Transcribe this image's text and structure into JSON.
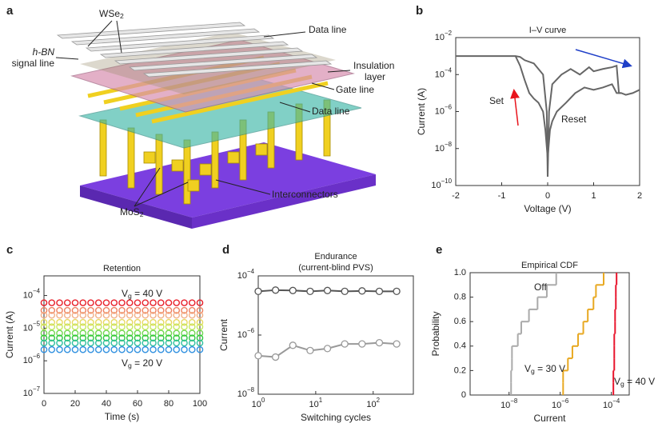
{
  "diagram": {
    "panel": "a",
    "labels": [
      "WSe2",
      "h-BN",
      "signal line",
      "Data line",
      "Insulation",
      "layer",
      "Gate line",
      "Data line",
      "Interconnectors",
      "MoS2"
    ]
  },
  "chart_data": [
    {
      "panel": "b",
      "type": "line",
      "title": "I–V curve",
      "xlabel": "Voltage (V)",
      "ylabel": "Current (A)",
      "xlim": [
        -2,
        2
      ],
      "xticks": [
        -2,
        -1,
        0,
        1,
        2
      ],
      "ylim": [
        1e-10,
        0.01
      ],
      "ylog": true,
      "yticks": [
        {
          "value": 1e-10,
          "label": "10−10"
        },
        {
          "value": 1e-08,
          "label": "10−8"
        },
        {
          "value": 1e-06,
          "label": "10−6"
        },
        {
          "value": 0.0001,
          "label": "10−4"
        },
        {
          "value": 0.01,
          "label": "10−2"
        }
      ],
      "series": [
        {
          "color": "#666666",
          "x": [
            -2,
            -1.5,
            -1,
            -0.7,
            -0.6,
            -0.5,
            -0.3,
            -0.1,
            -0.02,
            0,
            0.03,
            0.1,
            0.3,
            0.5,
            0.7,
            0.9,
            1.0,
            1.2,
            1.4,
            1.5,
            1.55,
            1.6,
            1.7,
            1.85,
            2
          ],
          "values": [
            0.001,
            0.001,
            0.001,
            0.001,
            0.0009,
            0.0006,
            0.0004,
            0.0001,
            1e-06,
            3e-10,
            1e-06,
            3e-05,
            0.0001,
            0.0002,
            0.0001,
            0.00025,
            0.00015,
            0.0002,
            0.00025,
            0.0003,
            1e-05,
            1e-05,
            8e-06,
            1e-05,
            1.5e-05
          ]
        },
        {
          "color": "#666666",
          "x": [
            -0.7,
            -0.6,
            -0.5,
            -0.4,
            -0.3,
            -0.2,
            -0.1,
            -0.05,
            0,
            0.05,
            0.1,
            0.2,
            0.4,
            0.6,
            0.8,
            1.0,
            1.2,
            1.4,
            1.5,
            1.6
          ],
          "values": [
            0.001,
            0.0003,
            5e-05,
            1e-05,
            5e-06,
            3e-06,
            1e-06,
            1e-07,
            3e-09,
            1e-07,
            3e-07,
            1e-06,
            3e-06,
            1e-05,
            2e-05,
            1.5e-05,
            2e-05,
            3e-05,
            1e-05,
            1e-05
          ]
        }
      ],
      "annotations": [
        {
          "text": "Set",
          "color": "#e8141c"
        },
        {
          "text": "Reset",
          "color": "#1f3fc8"
        }
      ]
    },
    {
      "panel": "c",
      "type": "scatter",
      "title": "Retention",
      "xlabel": "Time (s)",
      "ylabel": "Current (A)",
      "xlim": [
        0,
        100
      ],
      "xticks": [
        0,
        20,
        40,
        60,
        80,
        100
      ],
      "ylim": [
        1e-07,
        0.0004
      ],
      "ylog": true,
      "yticks": [
        {
          "value": 1e-07,
          "label": "10−7"
        },
        {
          "value": 1e-06,
          "label": "10−6"
        },
        {
          "value": 1e-05,
          "label": "10−5"
        },
        {
          "value": 0.0001,
          "label": "10−4"
        }
      ],
      "x": [
        0,
        5,
        10,
        15,
        20,
        25,
        30,
        35,
        40,
        45,
        50,
        55,
        60,
        65,
        70,
        75,
        80,
        85,
        90,
        95,
        100
      ],
      "series": [
        {
          "color": "#e8202a",
          "values": [
            6e-05,
            6e-05,
            6e-05,
            6e-05,
            6e-05,
            6e-05,
            6e-05,
            6e-05,
            6e-05,
            6e-05,
            6e-05,
            6e-05,
            6e-05,
            6e-05,
            6e-05,
            6e-05,
            6e-05,
            6e-05,
            6e-05,
            6e-05,
            6e-05
          ]
        },
        {
          "color": "#ee8060",
          "values": [
            3.5e-05,
            3.5e-05,
            3.5e-05,
            3.5e-05,
            3.5e-05,
            3.5e-05,
            3.5e-05,
            3.5e-05,
            3.5e-05,
            3.5e-05,
            3.5e-05,
            3.5e-05,
            3.5e-05,
            3.5e-05,
            3.5e-05,
            3.5e-05,
            3.5e-05,
            3.5e-05,
            3.5e-05,
            3.5e-05,
            3.5e-05
          ]
        },
        {
          "color": "#f2b088",
          "values": [
            2.5e-05,
            2.5e-05,
            2.5e-05,
            2.5e-05,
            2.5e-05,
            2.5e-05,
            2.5e-05,
            2.5e-05,
            2.5e-05,
            2.5e-05,
            2.5e-05,
            2.5e-05,
            2.5e-05,
            2.5e-05,
            2.5e-05,
            2.5e-05,
            2.5e-05,
            2.5e-05,
            2.5e-05,
            2.5e-05,
            2.5e-05
          ]
        },
        {
          "color": "#e8d860",
          "values": [
            1.5e-05,
            1.5e-05,
            1.5e-05,
            1.5e-05,
            1.5e-05,
            1.5e-05,
            1.5e-05,
            1.5e-05,
            1.5e-05,
            1.5e-05,
            1.5e-05,
            1.5e-05,
            1.5e-05,
            1.5e-05,
            1.5e-05,
            1.5e-05,
            1.5e-05,
            1.5e-05,
            1.5e-05,
            1.5e-05,
            1.5e-05
          ]
        },
        {
          "color": "#c8e860",
          "values": [
            1.1e-05,
            1.1e-05,
            1.1e-05,
            1.1e-05,
            1.1e-05,
            1.1e-05,
            1.1e-05,
            1.1e-05,
            1.1e-05,
            1.1e-05,
            1.1e-05,
            1.1e-05,
            1.1e-05,
            1.1e-05,
            1.1e-05,
            1.1e-05,
            1.1e-05,
            1.1e-05,
            1.1e-05,
            1.1e-05,
            1.1e-05
          ]
        },
        {
          "color": "#70d850",
          "values": [
            7e-06,
            7e-06,
            7e-06,
            7e-06,
            7e-06,
            7e-06,
            7e-06,
            7e-06,
            7e-06,
            7e-06,
            7e-06,
            7e-06,
            7e-06,
            7e-06,
            7e-06,
            7e-06,
            7e-06,
            7e-06,
            7e-06,
            7e-06,
            7e-06
          ]
        },
        {
          "color": "#30c840",
          "values": [
            5e-06,
            5e-06,
            5e-06,
            5e-06,
            5e-06,
            5e-06,
            5e-06,
            5e-06,
            5e-06,
            5e-06,
            5e-06,
            5e-06,
            5e-06,
            5e-06,
            5e-06,
            5e-06,
            5e-06,
            5e-06,
            5e-06,
            5e-06,
            5e-06
          ]
        },
        {
          "color": "#30c0a0",
          "values": [
            3.5e-06,
            3.5e-06,
            3.5e-06,
            3.5e-06,
            3.5e-06,
            3.5e-06,
            3.5e-06,
            3.5e-06,
            3.5e-06,
            3.5e-06,
            3.5e-06,
            3.5e-06,
            3.5e-06,
            3.5e-06,
            3.5e-06,
            3.5e-06,
            3.5e-06,
            3.5e-06,
            3.5e-06,
            3.5e-06,
            3.5e-06
          ]
        },
        {
          "color": "#3090e0",
          "values": [
            2.2e-06,
            2.2e-06,
            2.2e-06,
            2.2e-06,
            2.2e-06,
            2.2e-06,
            2.2e-06,
            2.2e-06,
            2.2e-06,
            2.2e-06,
            2.2e-06,
            2.2e-06,
            2.2e-06,
            2.2e-06,
            2.2e-06,
            2.2e-06,
            2.2e-06,
            2.2e-06,
            2.2e-06,
            2.2e-06,
            2.2e-06
          ]
        }
      ],
      "annotations": [
        {
          "text": "Vg = 40 V",
          "color": "#e8141c"
        },
        {
          "text": "Vg = 20 V",
          "color": "#3090e0"
        }
      ]
    },
    {
      "panel": "d",
      "type": "line",
      "title": "Endurance",
      "subtitle": "(current-blind PVS)",
      "xlabel": "Switching cycles",
      "ylabel": "Current",
      "xlim": [
        1,
        500
      ],
      "xlog": true,
      "xticks": [
        {
          "value": 1,
          "label": "100"
        },
        {
          "value": 10,
          "label": "101"
        },
        {
          "value": 100,
          "label": "102"
        }
      ],
      "ylim": [
        1e-08,
        0.0001
      ],
      "ylog": true,
      "yticks": [
        {
          "value": 1e-08,
          "label": "10−8"
        },
        {
          "value": 1e-06,
          "label": "10−6"
        },
        {
          "value": 0.0001,
          "label": "10−4"
        }
      ],
      "markers": true,
      "x": [
        1,
        2,
        4,
        8,
        16,
        32,
        64,
        128,
        256
      ],
      "series": [
        {
          "color": "#555555",
          "values": [
            3e-05,
            3.3e-05,
            3.2e-05,
            3e-05,
            3.2e-05,
            3e-05,
            3.1e-05,
            3e-05,
            3e-05
          ]
        },
        {
          "color": "#999999",
          "values": [
            2e-07,
            1.8e-07,
            4.5e-07,
            3e-07,
            3.5e-07,
            5e-07,
            5e-07,
            5.5e-07,
            5e-07
          ]
        }
      ]
    },
    {
      "panel": "e",
      "type": "ecdf",
      "title": "Empirical CDF",
      "xlabel": "Current",
      "ylabel": "Probability",
      "xlim": [
        3e-10,
        0.0005
      ],
      "xlog": true,
      "xticks": [
        {
          "value": 1e-08,
          "label": "10−8"
        },
        {
          "value": 1e-06,
          "label": "10−6"
        },
        {
          "value": 0.0001,
          "label": "10−4"
        }
      ],
      "ylim": [
        0,
        1
      ],
      "yticks": [
        0,
        0.2,
        0.4,
        0.6,
        0.8,
        {
          "value": 1,
          "label": "1.0"
        }
      ],
      "series": [
        {
          "name": "Off",
          "color": "#aaaaaa",
          "values": [
            1.2e-08,
            1.2e-08,
            1.3e-08,
            1.3e-08,
            2.2e-08,
            3e-08,
            6e-08,
            1.3e-07,
            3e-07,
            7e-07
          ]
        },
        {
          "name": "Vg = 30 V",
          "color": "#e8a820",
          "values": [
            1.3e-06,
            1.3e-06,
            2e-06,
            3e-06,
            5e-06,
            8e-06,
            1.2e-05,
            2e-05,
            2.5e-05,
            5e-05
          ]
        },
        {
          "name": "Vg = 40 V",
          "color": "#e8142c",
          "values": [
            0.00012,
            0.00012,
            0.00013,
            0.00013,
            0.00013,
            0.00014,
            0.00014,
            0.00015,
            0.00015,
            0.00016
          ]
        }
      ]
    }
  ]
}
